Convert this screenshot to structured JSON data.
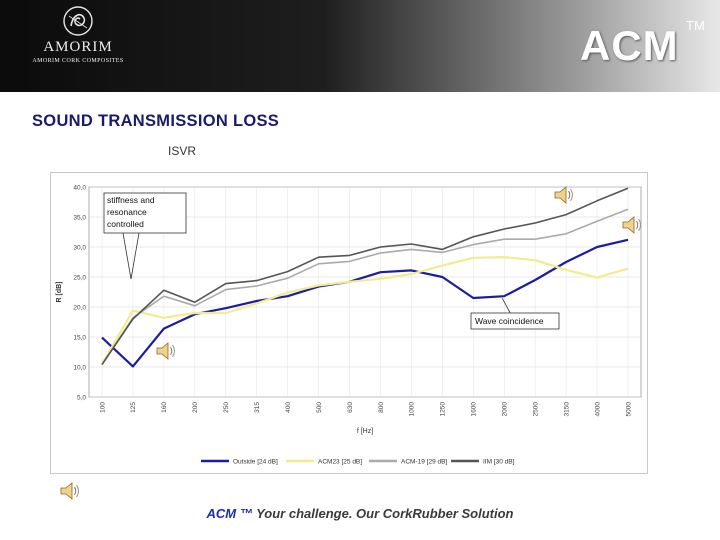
{
  "header": {
    "logo_name": "AMORIM",
    "logo_subtitle": "AMORIM CORK COMPOSITES",
    "brand": "ACM",
    "trademark": "TM"
  },
  "title": "SOUND TRANSMISSION LOSS",
  "source_label": "ISVR",
  "footer": {
    "acm": "ACM ™",
    "tagline": "Your challenge. Our CorkRubber Solution"
  },
  "icons": [
    "speaker-icon",
    "speaker-icon",
    "speaker-icon",
    "speaker-icon"
  ],
  "chart_data": {
    "type": "line",
    "title": "",
    "xlabel": "f [Hz]",
    "ylabel": "R [dB]",
    "ylim": [
      5,
      40
    ],
    "yticks": [
      "5,0",
      "10,0",
      "15,0",
      "20,0",
      "25,0",
      "30,0",
      "35,0",
      "40,0"
    ],
    "categories": [
      "100",
      "125",
      "160",
      "200",
      "250",
      "315",
      "400",
      "500",
      "630",
      "800",
      "1000",
      "1250",
      "1600",
      "2000",
      "2500",
      "3150",
      "4000",
      "5000"
    ],
    "grid": true,
    "legend_position": "bottom",
    "series": [
      {
        "name": "Outside [24 dB]",
        "color": "#1c1ca0",
        "width": 2.2,
        "values": [
          14.9,
          10.1,
          16.4,
          18.8,
          19.8,
          21.0,
          21.8,
          23.4,
          24.2,
          25.8,
          26.1,
          25.0,
          21.5,
          21.8,
          24.5,
          27.5,
          30.0,
          31.2
        ]
      },
      {
        "name": "ACM23 [25 dB]",
        "color": "#f2ec8c",
        "width": 2.2,
        "values": [
          10.5,
          19.4,
          18.2,
          19.0,
          19.0,
          20.6,
          22.4,
          23.6,
          24.2,
          24.7,
          25.5,
          26.9,
          28.2,
          28.3,
          27.8,
          26.2,
          24.9,
          26.4
        ]
      },
      {
        "name": "ACM-19 [29 dB]",
        "color": "#aaaaaa",
        "width": 1.6,
        "values": [
          10.4,
          18.2,
          21.8,
          20.2,
          22.9,
          23.5,
          24.8,
          27.2,
          27.6,
          29.0,
          29.6,
          29.1,
          30.4,
          31.3,
          31.3,
          32.2,
          34.3,
          36.3
        ]
      },
      {
        "name": "IIM [30 dB]",
        "color": "#555555",
        "width": 1.6,
        "values": [
          10.4,
          18.0,
          22.8,
          20.8,
          23.9,
          24.4,
          25.9,
          28.3,
          28.6,
          30.0,
          30.5,
          29.6,
          31.7,
          33.0,
          34.0,
          35.4,
          37.7,
          39.8
        ]
      }
    ],
    "annotations": [
      {
        "text_lines": [
          "stiffness and",
          "resonance",
          "controlled"
        ]
      },
      {
        "text_lines": [
          "Wave coincidence"
        ]
      }
    ]
  }
}
